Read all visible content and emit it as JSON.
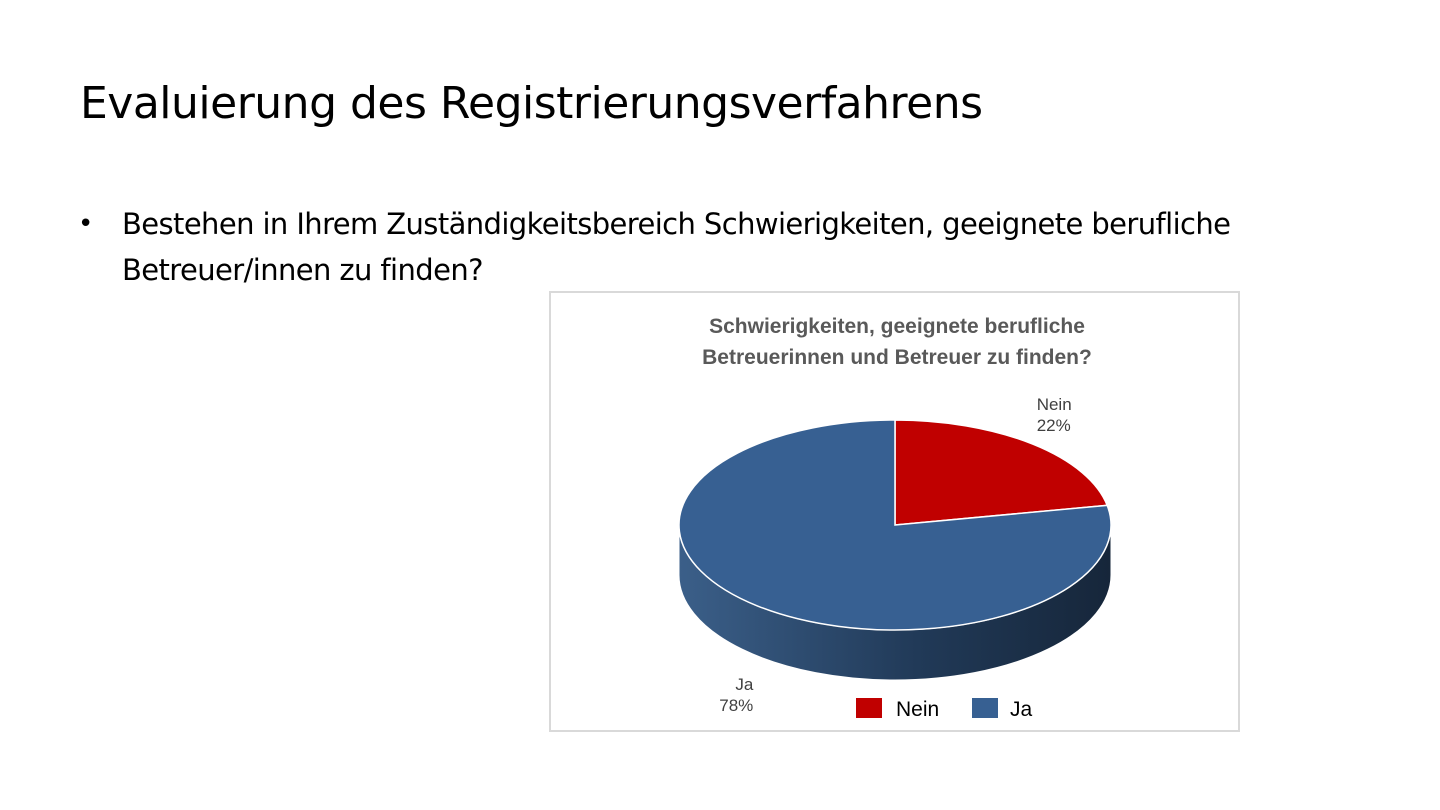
{
  "slide": {
    "title": "Evaluierung des Registrierungsverfahrens",
    "bullet": "Bestehen in Ihrem Zuständigkeitsbereich Schwierigkeiten, geeignete berufliche Betreuer/innen zu finden?",
    "bullet_symbol": "•"
  },
  "chart_data": {
    "type": "pie",
    "title": "Schwierigkeiten, geeignete berufliche Betreuerinnen und Betreuer zu finden?",
    "title_lines": [
      "Schwierigkeiten, geeignete berufliche",
      "Betreuerinnen und Betreuer zu finden?"
    ],
    "three_d": true,
    "legend_position": "bottom",
    "series": [
      {
        "name": "",
        "categories": [
          "Nein",
          "Ja"
        ],
        "values": [
          22,
          78
        ],
        "labels": [
          "22%",
          "78%"
        ],
        "colors": [
          "#c00000",
          "#376092"
        ]
      }
    ]
  }
}
